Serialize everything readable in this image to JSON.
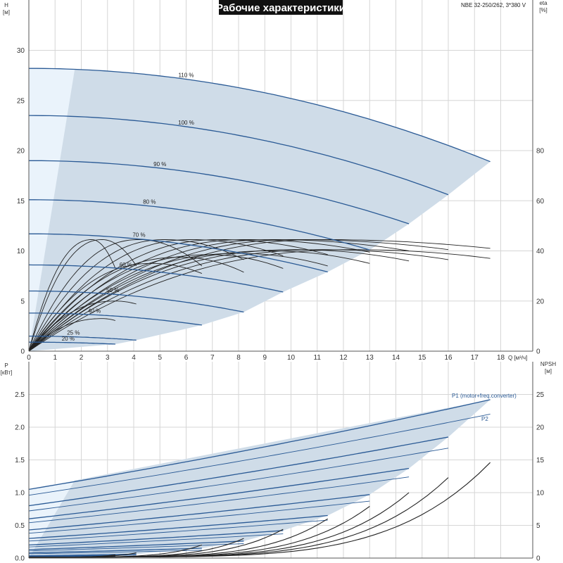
{
  "title": "Рабочие характеристики",
  "model": "NBE 32-250/262, 3*380 V",
  "colors": {
    "region": "#cfdce8",
    "region_light": "#eaf3fb",
    "speed_curve": "#2a5a95",
    "eta_curve": "#222222",
    "grid": "#d6d6d6"
  },
  "chart_data": [
    {
      "type": "line",
      "name": "head-and-efficiency",
      "y_left": {
        "symbol": "H",
        "unit": "[м]",
        "range": [
          0,
          35
        ],
        "ticks": [
          0,
          5,
          10,
          15,
          20,
          25,
          30
        ]
      },
      "y_right": {
        "symbol": "eta",
        "unit": "[%]",
        "range": [
          0,
          140
        ],
        "ticks": [
          0,
          20,
          40,
          60,
          80
        ]
      },
      "x": {
        "label": "Q [м³/ч]",
        "range": [
          0,
          19
        ],
        "ticks": [
          0,
          1,
          2,
          3,
          4,
          5,
          6,
          7,
          8,
          9,
          10,
          11,
          12,
          13,
          14,
          15,
          16,
          17,
          18
        ]
      },
      "grid": true,
      "speed_curves": [
        {
          "label": "110 %",
          "h0": 28.2,
          "qmax": 17.6,
          "hend": 18.9
        },
        {
          "label": "100 %",
          "h0": 23.5,
          "qmax": 16.0,
          "hend": 15.6
        },
        {
          "label": "90 %",
          "h0": 19.0,
          "qmax": 14.5,
          "hend": 12.7
        },
        {
          "label": "80 %",
          "h0": 15.1,
          "qmax": 13.0,
          "hend": 10.1
        },
        {
          "label": "70 %",
          "h0": 11.7,
          "qmax": 11.4,
          "hend": 7.9
        },
        {
          "label": "60 %",
          "h0": 8.6,
          "qmax": 9.7,
          "hend": 5.9
        },
        {
          "label": "50 %",
          "h0": 6.0,
          "qmax": 8.2,
          "hend": 3.9
        },
        {
          "label": "40 %",
          "h0": 3.8,
          "qmax": 6.6,
          "hend": 2.6
        },
        {
          "label": "25 %",
          "h0": 1.5,
          "qmax": 4.1,
          "hend": 1.1
        },
        {
          "label": "20 %",
          "h0": 0.9,
          "qmax": 3.3,
          "hend": 0.7
        }
      ],
      "eta_curves": [
        {
          "qmax": 17.6,
          "peak": 44.5,
          "qpk": 11.2,
          "end": 41.0
        },
        {
          "qmax": 16.0,
          "peak": 44.5,
          "qpk": 10.2,
          "end": 40.5
        },
        {
          "qmax": 14.5,
          "peak": 44.5,
          "qpk": 9.3,
          "end": 40.0
        },
        {
          "qmax": 13.0,
          "peak": 44.5,
          "qpk": 8.3,
          "end": 39.5
        },
        {
          "qmax": 11.4,
          "peak": 44.5,
          "qpk": 7.3,
          "end": 38.5
        },
        {
          "qmax": 9.7,
          "peak": 44.5,
          "qpk": 6.2,
          "end": 38.0
        },
        {
          "qmax": 8.2,
          "peak": 44.5,
          "qpk": 5.2,
          "end": 36.5
        },
        {
          "qmax": 6.6,
          "peak": 44.5,
          "qpk": 4.2,
          "end": 34.0
        },
        {
          "qmax": 4.1,
          "peak": 44.5,
          "qpk": 2.8,
          "end": 34.0
        },
        {
          "qmax": 3.3,
          "peak": 44.5,
          "qpk": 2.4,
          "end": 33.0
        },
        {
          "qmax": 17.6,
          "peak": 40.5,
          "qpk": 12.4,
          "end": 37.0
        },
        {
          "qmax": 16.0,
          "peak": 40.5,
          "qpk": 11.2,
          "end": 36.5
        },
        {
          "qmax": 14.5,
          "peak": 40.5,
          "qpk": 10.2,
          "end": 36.0
        },
        {
          "qmax": 13.0,
          "peak": 40.0,
          "qpk": 9.2,
          "end": 35.0
        },
        {
          "qmax": 11.4,
          "peak": 39.0,
          "qpk": 8.0,
          "end": 34.0
        },
        {
          "qmax": 9.7,
          "peak": 38.5,
          "qpk": 6.9,
          "end": 33.0
        },
        {
          "qmax": 8.2,
          "peak": 37.5,
          "qpk": 5.8,
          "end": 31.5
        },
        {
          "qmax": 6.6,
          "peak": 35.0,
          "qpk": 4.7,
          "end": 31.0
        },
        {
          "qmax": 4.1,
          "peak": 20.0,
          "qpk": 3.3,
          "end": 18.8
        },
        {
          "qmax": 3.3,
          "peak": 13.0,
          "qpk": 2.8,
          "end": 12.2
        }
      ]
    },
    {
      "type": "line",
      "name": "power-and-npsh",
      "y_left": {
        "symbol": "P",
        "unit": "[кВт]",
        "range": [
          0,
          3.0
        ],
        "ticks": [
          0.0,
          0.5,
          1.0,
          1.5,
          2.0,
          2.5
        ]
      },
      "y_right": {
        "symbol": "NPSH",
        "unit": "[м]",
        "range": [
          0,
          30
        ],
        "ticks": [
          0,
          5,
          10,
          15,
          20,
          25
        ]
      },
      "x": {
        "range": [
          0,
          19
        ]
      },
      "grid": true,
      "p1_label": "P1 (motor+freq.converter)",
      "p2_label": "P2",
      "power_curves": [
        {
          "series": "P1",
          "qmax": 17.6,
          "p0": 1.05,
          "pend": 2.42
        },
        {
          "series": "P2",
          "qmax": 17.6,
          "p0": 0.96,
          "pend": 2.2
        },
        {
          "series": "P1",
          "qmax": 16.0,
          "p0": 0.8,
          "pend": 1.85
        },
        {
          "series": "P2",
          "qmax": 16.0,
          "p0": 0.72,
          "pend": 1.68
        },
        {
          "series": "P1",
          "qmax": 14.5,
          "p0": 0.6,
          "pend": 1.37
        },
        {
          "series": "P2",
          "qmax": 14.5,
          "p0": 0.54,
          "pend": 1.24
        },
        {
          "series": "P1",
          "qmax": 13.0,
          "p0": 0.43,
          "pend": 0.97
        },
        {
          "series": "P2",
          "qmax": 13.0,
          "p0": 0.38,
          "pend": 0.87
        },
        {
          "series": "P1",
          "qmax": 11.4,
          "p0": 0.3,
          "pend": 0.65
        },
        {
          "series": "P2",
          "qmax": 11.4,
          "p0": 0.26,
          "pend": 0.58
        },
        {
          "series": "P1",
          "qmax": 9.7,
          "p0": 0.2,
          "pend": 0.42
        },
        {
          "series": "P2",
          "qmax": 9.7,
          "p0": 0.17,
          "pend": 0.37
        },
        {
          "series": "P1",
          "qmax": 8.2,
          "p0": 0.13,
          "pend": 0.26
        },
        {
          "series": "P2",
          "qmax": 8.2,
          "p0": 0.11,
          "pend": 0.22
        },
        {
          "series": "P1",
          "qmax": 6.6,
          "p0": 0.08,
          "pend": 0.15
        },
        {
          "series": "P2",
          "qmax": 6.6,
          "p0": 0.065,
          "pend": 0.12
        },
        {
          "series": "P1",
          "qmax": 4.1,
          "p0": 0.035,
          "pend": 0.06
        },
        {
          "series": "P2",
          "qmax": 4.1,
          "p0": 0.025,
          "pend": 0.045
        },
        {
          "series": "P1",
          "qmax": 3.3,
          "p0": 0.025,
          "pend": 0.04
        },
        {
          "series": "P2",
          "qmax": 3.3,
          "p0": 0.018,
          "pend": 0.03
        }
      ],
      "npsh_curves": [
        {
          "qmax": 17.6,
          "end": 14.6
        },
        {
          "qmax": 16.0,
          "end": 12.3
        },
        {
          "qmax": 14.5,
          "end": 10.0
        },
        {
          "qmax": 13.0,
          "end": 7.9
        },
        {
          "qmax": 11.4,
          "end": 6.0
        },
        {
          "qmax": 9.7,
          "end": 4.4
        },
        {
          "qmax": 8.2,
          "end": 3.0
        },
        {
          "qmax": 6.6,
          "end": 2.0
        },
        {
          "qmax": 4.1,
          "end": 0.8
        },
        {
          "qmax": 3.3,
          "end": 0.5
        }
      ]
    }
  ]
}
